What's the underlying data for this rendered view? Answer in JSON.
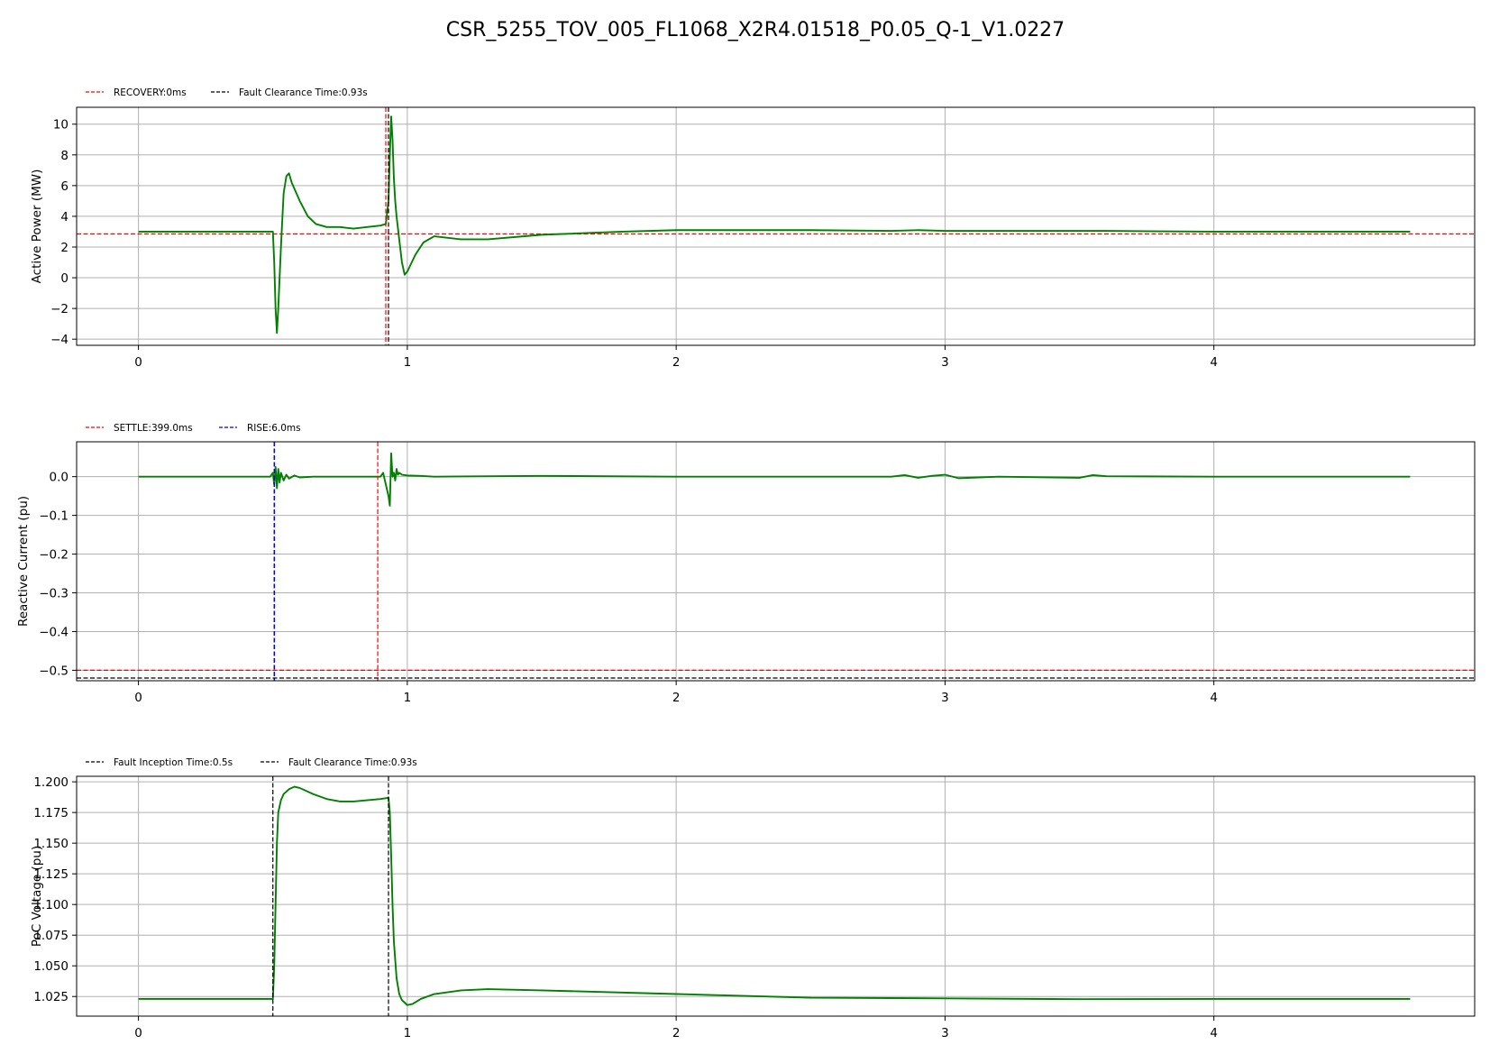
{
  "figure_title": "CSR_5255_TOV_005_FL1068_X2R4.01518_P0.05_Q-1_V1.0227",
  "colors": {
    "series": "#008000",
    "red": "#ff0000",
    "black": "#000000",
    "blue": "#0000ff",
    "grid": "#b0b0b0"
  },
  "chart_data": [
    {
      "type": "line",
      "ylabel": "Active Power (MW)",
      "xlim": [
        -0.23,
        4.97
      ],
      "ylim": [
        -4.4,
        11.1
      ],
      "xticks": [
        0,
        1,
        2,
        3,
        4
      ],
      "yticks": [
        -4,
        -2,
        0,
        2,
        4,
        6,
        8,
        10
      ],
      "ytick_labels": [
        "−4",
        "−2",
        "0",
        "2",
        "4",
        "6",
        "8",
        "10"
      ],
      "grid": true,
      "legend": [
        {
          "label": "RECOVERY:0ms",
          "color": "#ff0000",
          "style": "dashed"
        },
        {
          "label": "Fault Clearance Time:0.93s",
          "color": "#000000",
          "style": "dashed"
        }
      ],
      "hlines": [
        {
          "y": 2.85,
          "color": "#ff0000"
        }
      ],
      "vlines": [
        {
          "x": 0.92,
          "color": "#ff0000"
        },
        {
          "x": 0.93,
          "color": "#000000"
        }
      ],
      "series": [
        {
          "x": [
            0,
            0.5,
            0.505,
            0.51,
            0.515,
            0.52,
            0.53,
            0.54,
            0.55,
            0.56,
            0.57,
            0.6,
            0.63,
            0.66,
            0.7,
            0.75,
            0.8,
            0.85,
            0.9,
            0.92,
            0.93,
            0.935,
            0.94,
            0.945,
            0.95,
            0.955,
            0.96,
            0.97,
            0.98,
            0.99,
            1.0,
            1.03,
            1.06,
            1.1,
            1.2,
            1.3,
            1.5,
            1.8,
            2.0,
            2.2,
            2.5,
            2.8,
            2.9,
            3.0,
            3.2,
            3.4,
            3.6,
            4.0,
            4.4,
            4.73
          ],
          "y": [
            3.0,
            3.0,
            1.0,
            -2.0,
            -3.6,
            -2.0,
            2.0,
            5.5,
            6.6,
            6.8,
            6.2,
            5.0,
            4.0,
            3.5,
            3.3,
            3.3,
            3.2,
            3.3,
            3.4,
            3.5,
            5.0,
            8.0,
            10.5,
            9.0,
            6.5,
            5.0,
            4.0,
            2.5,
            1.0,
            0.2,
            0.4,
            1.5,
            2.3,
            2.7,
            2.5,
            2.5,
            2.8,
            3.0,
            3.1,
            3.1,
            3.1,
            3.05,
            3.1,
            3.05,
            3.05,
            3.05,
            3.05,
            3.0,
            3.0,
            3.0
          ]
        }
      ]
    },
    {
      "type": "line",
      "ylabel": "Reactive Current (pu)",
      "xlim": [
        -0.23,
        4.97
      ],
      "ylim": [
        -0.527,
        0.09
      ],
      "xticks": [
        0,
        1,
        2,
        3,
        4
      ],
      "yticks": [
        0.0,
        -0.1,
        -0.2,
        -0.3,
        -0.4,
        -0.5
      ],
      "ytick_labels": [
        "0.0",
        "−0.1",
        "−0.2",
        "−0.3",
        "−0.4",
        "−0.5"
      ],
      "grid": true,
      "legend": [
        {
          "label": "SETTLE:399.0ms",
          "color": "#ff0000",
          "style": "dashed"
        },
        {
          "label": "RISE:6.0ms",
          "color": "#0000ff",
          "style": "dashed"
        }
      ],
      "hlines": [
        {
          "y": -0.5,
          "color": "#ff0000"
        },
        {
          "y": -0.52,
          "color": "#000000"
        }
      ],
      "vlines": [
        {
          "x": 0.505,
          "color": "#000000"
        },
        {
          "x": 0.506,
          "color": "#0000ff"
        },
        {
          "x": 0.89,
          "color": "#ff0000"
        }
      ],
      "series": [
        {
          "x": [
            0,
            0.49,
            0.5,
            0.505,
            0.51,
            0.515,
            0.52,
            0.525,
            0.53,
            0.54,
            0.55,
            0.56,
            0.58,
            0.6,
            0.65,
            0.7,
            0.8,
            0.9,
            0.91,
            0.92,
            0.93,
            0.935,
            0.94,
            0.945,
            0.95,
            0.955,
            0.96,
            0.965,
            0.97,
            0.98,
            1.0,
            1.05,
            1.1,
            1.5,
            2.0,
            2.5,
            2.8,
            2.85,
            2.9,
            2.95,
            3.0,
            3.05,
            3.2,
            3.5,
            3.55,
            3.6,
            4.0,
            4.73
          ],
          "y": [
            0.0,
            0.0,
            0.01,
            -0.02,
            0.025,
            -0.03,
            0.02,
            -0.015,
            0.01,
            -0.01,
            0.005,
            -0.005,
            0.003,
            -0.002,
            0.0,
            0.0,
            0.0,
            0.0,
            0.01,
            -0.02,
            -0.05,
            -0.075,
            0.06,
            0.0,
            0.01,
            -0.01,
            0.02,
            0.005,
            0.01,
            0.005,
            0.003,
            0.002,
            0.0,
            0.002,
            0.0,
            0.0,
            0.0,
            0.004,
            -0.003,
            0.002,
            0.005,
            -0.004,
            0.0,
            -0.003,
            0.004,
            0.001,
            0.0,
            0.0
          ]
        }
      ]
    },
    {
      "type": "line",
      "ylabel": "PoC Voltage (pu)",
      "xlim": [
        -0.23,
        4.97
      ],
      "ylim": [
        1.009,
        1.2045
      ],
      "xticks": [
        0,
        1,
        2,
        3,
        4
      ],
      "yticks": [
        1.025,
        1.05,
        1.075,
        1.1,
        1.125,
        1.15,
        1.175,
        1.2
      ],
      "ytick_labels": [
        "1.025",
        "1.050",
        "1.075",
        "1.100",
        "1.125",
        "1.150",
        "1.175",
        "1.200"
      ],
      "grid": true,
      "legend": [
        {
          "label": "Fault Inception Time:0.5s",
          "color": "#000000",
          "style": "dashed"
        },
        {
          "label": "Fault Clearance Time:0.93s",
          "color": "#000000",
          "style": "dashed"
        }
      ],
      "hlines": [],
      "vlines": [
        {
          "x": 0.5,
          "color": "#000000"
        },
        {
          "x": 0.93,
          "color": "#000000"
        }
      ],
      "series": [
        {
          "x": [
            0,
            0.5,
            0.505,
            0.51,
            0.515,
            0.52,
            0.53,
            0.54,
            0.56,
            0.58,
            0.6,
            0.65,
            0.7,
            0.75,
            0.8,
            0.85,
            0.9,
            0.93,
            0.935,
            0.94,
            0.945,
            0.95,
            0.96,
            0.97,
            0.98,
            1.0,
            1.02,
            1.05,
            1.1,
            1.2,
            1.3,
            1.5,
            2.0,
            2.5,
            3.0,
            3.5,
            4.0,
            4.73
          ],
          "y": [
            1.023,
            1.023,
            1.05,
            1.1,
            1.15,
            1.175,
            1.185,
            1.19,
            1.194,
            1.196,
            1.195,
            1.19,
            1.186,
            1.184,
            1.184,
            1.185,
            1.186,
            1.187,
            1.175,
            1.14,
            1.1,
            1.07,
            1.04,
            1.027,
            1.022,
            1.018,
            1.019,
            1.023,
            1.027,
            1.03,
            1.031,
            1.03,
            1.027,
            1.024,
            1.0235,
            1.0228,
            1.023,
            1.023
          ]
        }
      ]
    }
  ]
}
